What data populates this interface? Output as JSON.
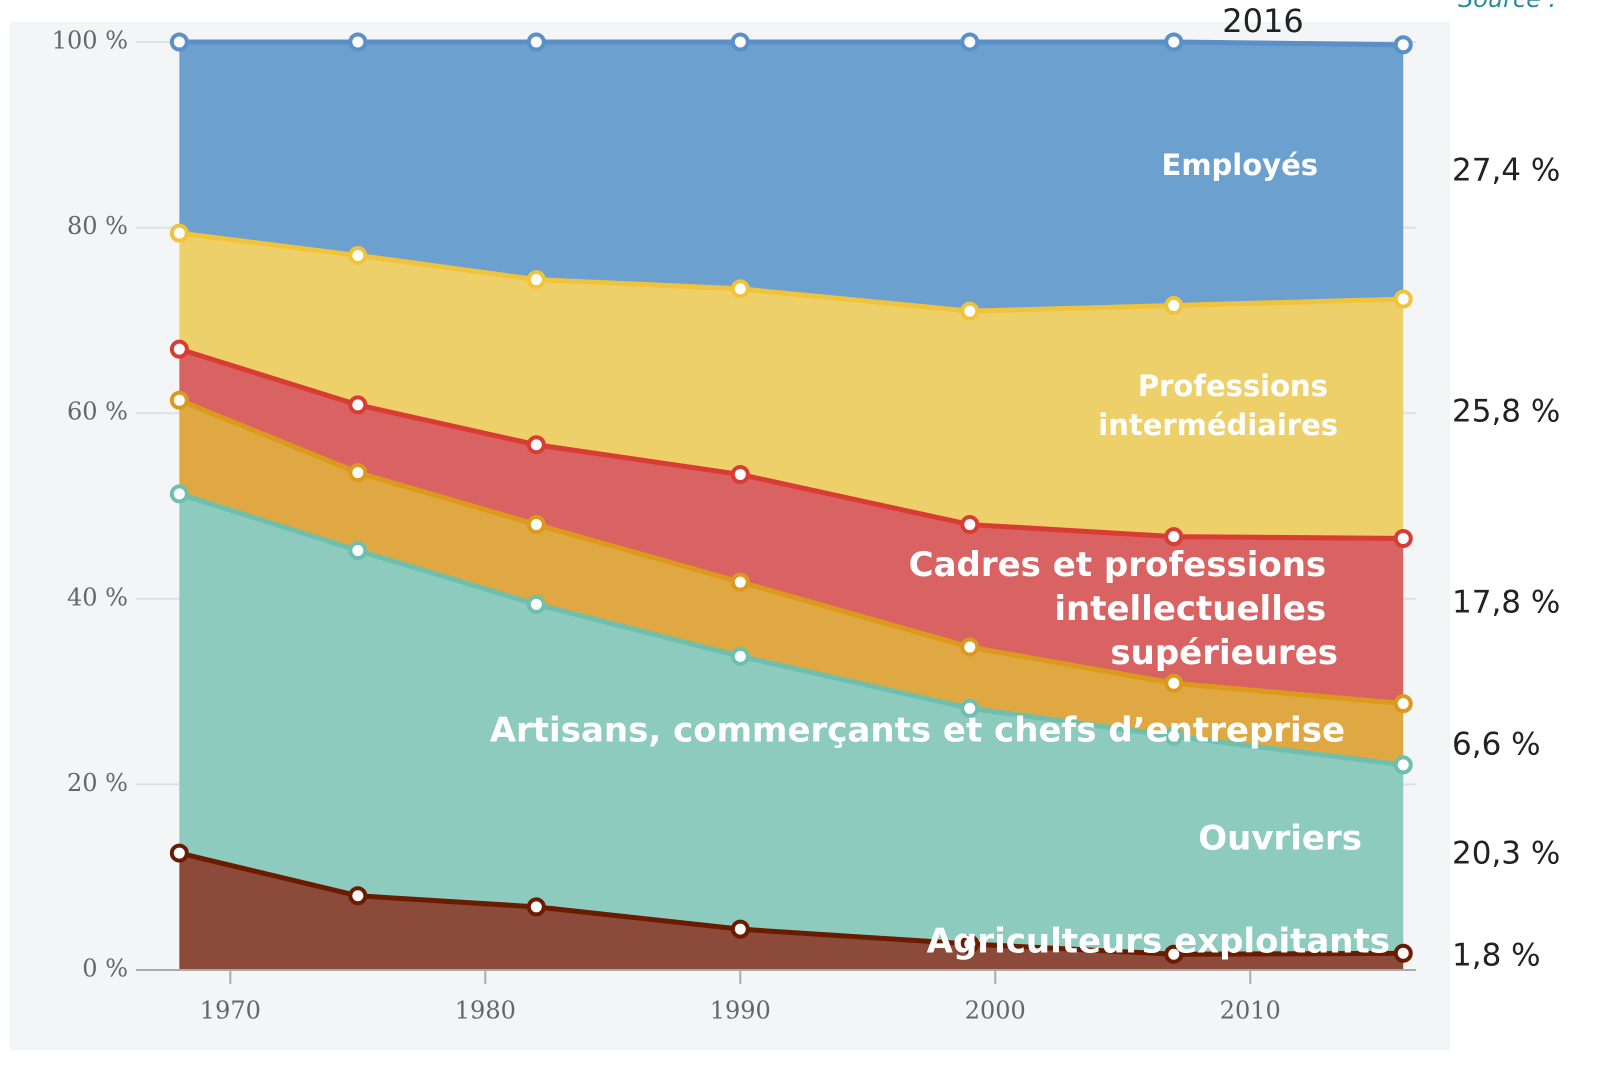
{
  "chart_data": {
    "type": "stacked_area",
    "annotation": "2016",
    "source": "Source :",
    "x": [
      1968,
      1975,
      1982,
      1990,
      1999,
      2007,
      2016
    ],
    "xlim": [
      1966.3,
      2016.5
    ],
    "xticks": [
      1970,
      1980,
      1990,
      2000,
      2010
    ],
    "ylim": [
      0,
      100
    ],
    "yticks": [
      {
        "value": 0,
        "label": "0 %"
      },
      {
        "value": 20,
        "label": "20 %"
      },
      {
        "value": 40,
        "label": "40 %"
      },
      {
        "value": 60,
        "label": "60 %"
      },
      {
        "value": 80,
        "label": "80 %"
      },
      {
        "value": 100,
        "label": "100 %"
      }
    ],
    "grid": true,
    "series": [
      {
        "name": "Agriculteurs exploitants",
        "color": "#8b4a3a",
        "line_color": "#6a1b00",
        "values": [
          12.6,
          8.0,
          6.8,
          4.4,
          2.8,
          1.7,
          1.8
        ],
        "value_labels": [
          null,
          null,
          null,
          null,
          null,
          null,
          "1,8 %"
        ]
      },
      {
        "name": "Ouvriers",
        "color": "#8ecbbf",
        "line_color": "#6fbfae",
        "values": [
          38.7,
          37.2,
          32.6,
          29.4,
          25.4,
          23.5,
          20.3
        ],
        "value_labels": [
          null,
          null,
          null,
          null,
          null,
          null,
          "20,3 %"
        ]
      },
      {
        "name": "Artisans, commerçants et chefs d’entreprise",
        "color": "#dfa843",
        "line_color": "#dc9a1c",
        "values": [
          10.1,
          8.4,
          8.6,
          8.0,
          6.6,
          5.7,
          6.6
        ],
        "value_labels": [
          null,
          null,
          null,
          null,
          null,
          null,
          "6,6 %"
        ]
      },
      {
        "name": "Cadres et professions intellectuelles supérieures",
        "color": "#d96262",
        "line_color": "#d93c35",
        "values": [
          5.5,
          7.3,
          8.6,
          11.6,
          13.2,
          15.8,
          17.8
        ],
        "value_labels": [
          null,
          null,
          null,
          null,
          null,
          null,
          "17,8 %"
        ]
      },
      {
        "name": "Professions intermédiaires",
        "color": "#eed06a",
        "line_color": "#f0c33c",
        "values": [
          12.5,
          16.1,
          17.8,
          20.0,
          23.0,
          24.9,
          25.8
        ],
        "value_labels": [
          null,
          null,
          null,
          null,
          null,
          null,
          "25,8 %"
        ]
      },
      {
        "name": "Employés",
        "color": "#6ca0cf",
        "line_color": "#5b8fc7",
        "values": [
          20.6,
          23.0,
          25.6,
          26.6,
          29.0,
          28.4,
          27.4
        ],
        "value_labels": [
          null,
          null,
          null,
          null,
          null,
          null,
          "27,4 %"
        ]
      }
    ]
  }
}
